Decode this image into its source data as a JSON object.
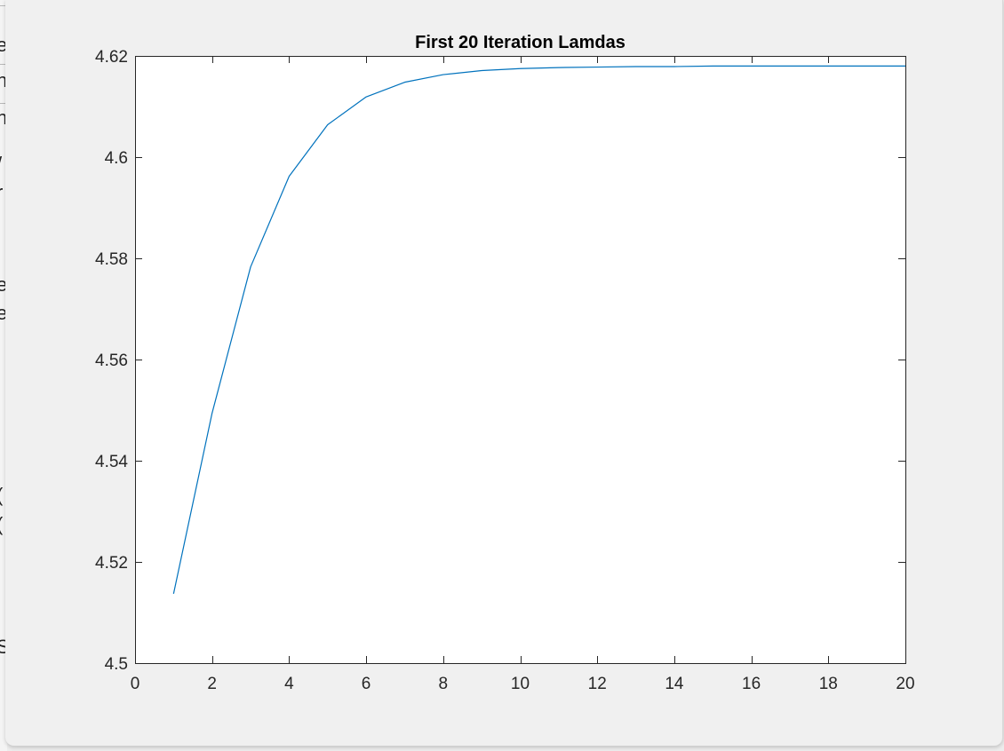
{
  "background_window": {
    "glyphs": [
      "e",
      "n",
      "n",
      "/",
      "r",
      "e",
      "e",
      "(",
      "(",
      "S"
    ]
  },
  "colors": {
    "line": "#0072bd",
    "axes": "#262626",
    "plot_background": "#ffffff",
    "figure_background": "#f0f0f0"
  },
  "chart_data": {
    "type": "line",
    "title": "First 20 Iteration Lamdas",
    "xlabel": "",
    "ylabel": "",
    "xlim": [
      0,
      20
    ],
    "ylim": [
      4.5,
      4.62
    ],
    "xticks": [
      0,
      2,
      4,
      6,
      8,
      10,
      12,
      14,
      16,
      18,
      20
    ],
    "xtick_labels": [
      "0",
      "2",
      "4",
      "6",
      "8",
      "10",
      "12",
      "14",
      "16",
      "18",
      "20"
    ],
    "yticks": [
      4.5,
      4.52,
      4.54,
      4.56,
      4.58,
      4.6,
      4.62
    ],
    "ytick_labels": [
      "4.5",
      "4.52",
      "4.54",
      "4.56",
      "4.58",
      "4.6",
      "4.62"
    ],
    "grid": false,
    "legend": "none",
    "series": [
      {
        "x": [
          1,
          2,
          3,
          4,
          5,
          6,
          7,
          8,
          9,
          10,
          11,
          12,
          13,
          14,
          15,
          16,
          17,
          18,
          19,
          20
        ],
        "values": [
          4.5137,
          4.5494,
          4.5783,
          4.5962,
          4.6064,
          4.6119,
          4.6148,
          4.6163,
          4.6171,
          4.6175,
          4.6177,
          4.6178,
          4.6179,
          4.6179,
          4.618,
          4.618,
          4.618,
          4.618,
          4.618,
          4.618
        ]
      }
    ]
  }
}
